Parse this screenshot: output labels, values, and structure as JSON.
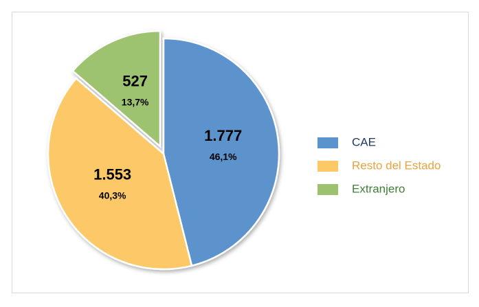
{
  "chart_data": {
    "type": "pie",
    "categories": [
      "CAE",
      "Resto del Estado",
      "Extranjero"
    ],
    "values": [
      1777,
      1553,
      527
    ],
    "value_labels": [
      "1.777",
      "1.553",
      "527"
    ],
    "percents": [
      46.1,
      40.3,
      13.7
    ],
    "percent_labels": [
      "46,1%",
      "40,3%",
      "13,7%"
    ],
    "colors": [
      "#5b93cc",
      "#fdc967",
      "#9dc26f"
    ],
    "legend_text_colors": [
      "#1f3864",
      "#e8a33d",
      "#3f7f34"
    ],
    "exploded": [
      false,
      false,
      true
    ],
    "legend": "right"
  }
}
